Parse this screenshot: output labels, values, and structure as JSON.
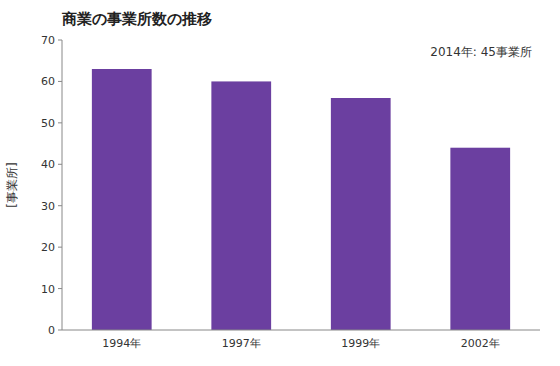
{
  "chart_data": {
    "type": "bar",
    "title": "商業の事業所数の推移",
    "ylabel": "[事業所]",
    "annotation": "2014年: 45事業所",
    "categories": [
      "1994年",
      "1997年",
      "1999年",
      "2002年"
    ],
    "values": [
      63,
      60,
      56,
      44
    ],
    "color": "#6b3fa0",
    "ylim": [
      0,
      70
    ],
    "yticks": [
      0,
      10,
      20,
      30,
      40,
      50,
      60,
      70
    ],
    "grid": false
  }
}
